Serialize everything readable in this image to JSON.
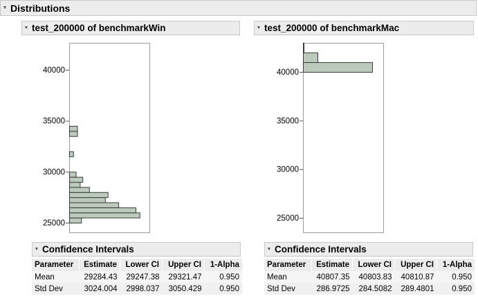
{
  "outline": {
    "title": "Distributions"
  },
  "panels": [
    {
      "title": "test_200000 of benchmarkWin",
      "chart_data": {
        "type": "bar",
        "orientation": "horizontal",
        "title": "",
        "xlabel": "",
        "ylabel": "",
        "yticks": [
          25000,
          30000,
          35000,
          40000
        ],
        "ylim": [
          24500,
          43000
        ],
        "bin_width": 500,
        "bins": [
          {
            "start": 25000,
            "count": 9
          },
          {
            "start": 25500,
            "count": 53
          },
          {
            "start": 26000,
            "count": 50
          },
          {
            "start": 26500,
            "count": 37
          },
          {
            "start": 27000,
            "count": 27
          },
          {
            "start": 27500,
            "count": 29
          },
          {
            "start": 28000,
            "count": 15
          },
          {
            "start": 28500,
            "count": 8
          },
          {
            "start": 29000,
            "count": 10
          },
          {
            "start": 29500,
            "count": 5
          },
          {
            "start": 30000,
            "count": 0
          },
          {
            "start": 30500,
            "count": 0
          },
          {
            "start": 31000,
            "count": 0
          },
          {
            "start": 31500,
            "count": 3
          },
          {
            "start": 32000,
            "count": 0
          },
          {
            "start": 32500,
            "count": 0
          },
          {
            "start": 33000,
            "count": 0
          },
          {
            "start": 33500,
            "count": 6
          },
          {
            "start": 34000,
            "count": 6
          }
        ]
      },
      "confidence_intervals": {
        "title": "Confidence Intervals",
        "columns": [
          "Parameter",
          "Estimate",
          "Lower CI",
          "Upper CI",
          "1-Alpha"
        ],
        "rows": [
          [
            "Mean",
            "29284.43",
            "29247.38",
            "29321.47",
            "0.950"
          ],
          [
            "Std Dev",
            "3024.004",
            "2998.037",
            "3050.429",
            "0.950"
          ]
        ]
      }
    },
    {
      "title": "test_200000 of benchmarkMac",
      "chart_data": {
        "type": "bar",
        "orientation": "horizontal",
        "title": "",
        "xlabel": "",
        "ylabel": "",
        "yticks": [
          25000,
          30000,
          35000,
          40000
        ],
        "ylim": [
          24000,
          43000
        ],
        "bin_width": 1000,
        "bins": [
          {
            "start": 40000,
            "count": 100
          },
          {
            "start": 41000,
            "count": 21
          },
          {
            "start": 42000,
            "count": 1
          }
        ]
      },
      "confidence_intervals": {
        "title": "Confidence Intervals",
        "columns": [
          "Parameter",
          "Estimate",
          "Lower CI",
          "Upper CI",
          "1-Alpha"
        ],
        "rows": [
          [
            "Mean",
            "40807.35",
            "40803.83",
            "40810.87",
            "0.950"
          ],
          [
            "Std Dev",
            "286.9725",
            "284.5082",
            "289.4801",
            "0.950"
          ]
        ]
      }
    }
  ],
  "colors": {
    "bar_fill": "#bccabc",
    "bar_stroke": "#3a3a3a",
    "header_bg": "#ececec"
  },
  "icons": {
    "disclosure": "disclosure-triangle-icon"
  }
}
